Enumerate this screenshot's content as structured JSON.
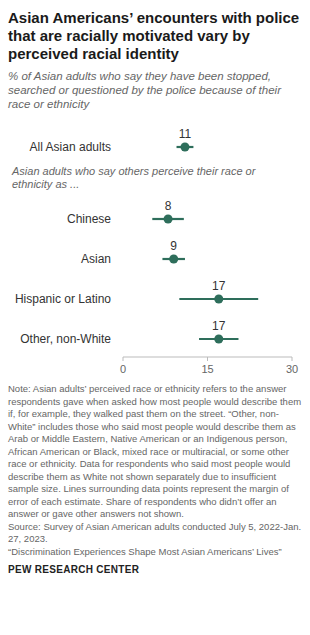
{
  "chart_data": {
    "type": "dot",
    "orientation": "horizontal",
    "title": "Asian Americans’ encounters with police that are racially motivated vary by perceived racial identity",
    "subtitle": "% of Asian adults who say they have been stopped, searched or questioned by the police because of their race or ethnicity",
    "group_label": "Asian adults who say others perceive their race or ethnicity as ...",
    "categories": [
      "All Asian adults",
      "Chinese",
      "Asian",
      "Hispanic or Latino",
      "Other, non-White"
    ],
    "values": [
      11,
      8,
      9,
      17,
      17
    ],
    "errors": [
      1.5,
      2.8,
      2.0,
      7.0,
      3.5
    ],
    "color": "#2e6e5b",
    "data_labels": true,
    "grid": false,
    "xlim": [
      0,
      30
    ],
    "xticks": [
      0,
      15,
      30
    ],
    "note": "Note: Asian adults’ perceived race or ethnicity refers to the answer respondents gave when asked how most people would describe them if, for example, they walked past them on the street. “Other, non-White” includes those who said most people would describe them as Arab or Middle Eastern, Native American or an Indigenous person, African American or Black, mixed race or multiracial, or some other race or ethnicity. Data for respondents who said most people would describe them as White not shown separately due to insufficient sample size. Lines surrounding data points represent the margin of error of each estimate. Share of respondents who didn’t offer an answer or gave other answers not shown.",
    "source": "Source: Survey of Asian American adults conducted July 5, 2022-Jan. 27, 2023.",
    "report": "“Discrimination Experiences Shape Most Asian Americans’ Lives”",
    "publisher": "PEW RESEARCH CENTER"
  }
}
